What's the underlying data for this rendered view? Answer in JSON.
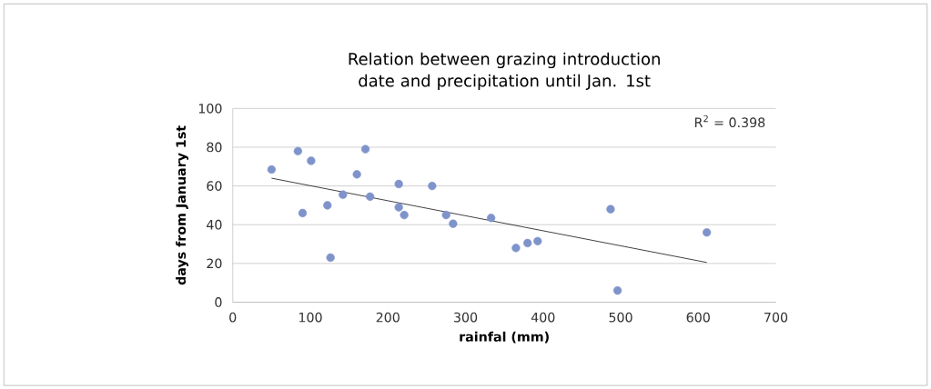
{
  "chart_data": {
    "type": "scatter",
    "title": "Relation between grazing introduction date and precipitation until Jan. 1st",
    "xlabel": "rainfal (mm)",
    "ylabel": "days from January 1st",
    "xlim": [
      0,
      700
    ],
    "ylim": [
      0,
      100
    ],
    "xticks": [
      0,
      100,
      200,
      300,
      400,
      500,
      600,
      700
    ],
    "yticks": [
      0,
      20,
      40,
      60,
      80,
      100
    ],
    "grid": "y",
    "annotations": [
      "R$^{2}$ = 0.398"
    ],
    "series": [
      {
        "marker": "circle",
        "color": "#7f93cb",
        "x": [
          50,
          84,
          101,
          90,
          122,
          126,
          142,
          160,
          171,
          177,
          214,
          214,
          221,
          257,
          275,
          284,
          333,
          365,
          380,
          393,
          487,
          496,
          611
        ],
        "values": [
          68.5,
          78,
          73,
          46,
          50,
          23,
          55.5,
          66,
          79,
          54.5,
          61,
          49,
          45,
          60,
          45,
          40.5,
          43.5,
          28,
          30.5,
          31.5,
          48,
          6,
          36
        ]
      },
      {
        "type": "line",
        "marker": "none",
        "color": "#000000",
        "x": [
          50,
          611
        ],
        "values": [
          64,
          20.5
        ]
      }
    ]
  }
}
